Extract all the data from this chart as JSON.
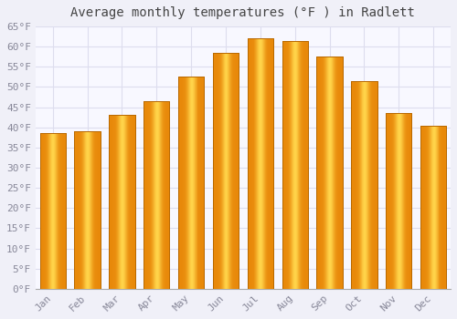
{
  "title": "Average monthly temperatures (°F ) in Radlett",
  "months": [
    "Jan",
    "Feb",
    "Mar",
    "Apr",
    "May",
    "Jun",
    "Jul",
    "Aug",
    "Sep",
    "Oct",
    "Nov",
    "Dec"
  ],
  "values": [
    38.5,
    39.0,
    43.0,
    46.5,
    52.5,
    58.5,
    62.0,
    61.5,
    57.5,
    51.5,
    43.5,
    40.5
  ],
  "bar_color_center": "#FFD44A",
  "bar_color_edge": "#E8890A",
  "background_color": "#F0F0F8",
  "plot_bg_color": "#F8F8FF",
  "grid_color": "#DDDDEE",
  "tick_label_color": "#888899",
  "title_color": "#444444",
  "ylim": [
    0,
    65
  ],
  "ytick_step": 5,
  "title_fontsize": 10,
  "bar_width": 0.75
}
